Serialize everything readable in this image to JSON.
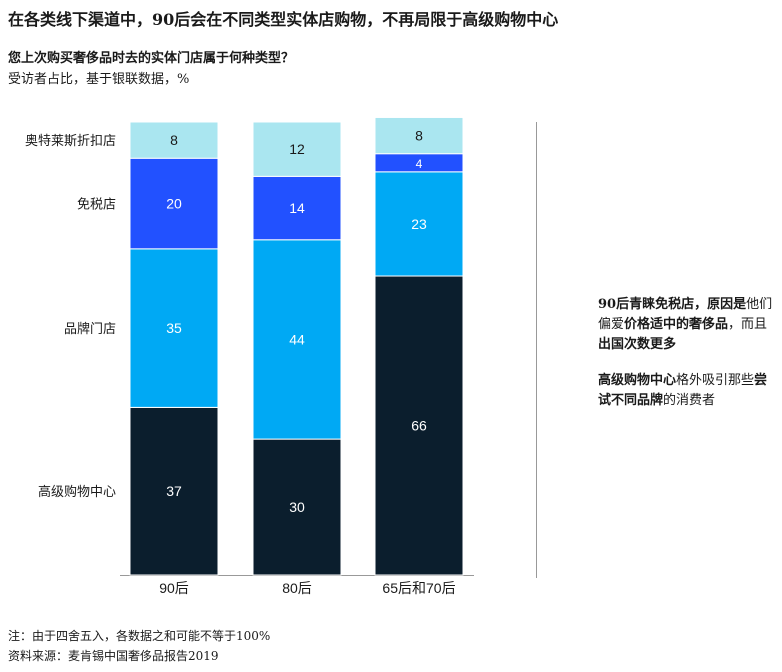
{
  "header": {
    "title": "在各类线下渠道中，90后会在不同类型实体店购物，不再局限于高级购物中心",
    "subtitle": "您上次购买奢侈品时去的实体门店属于何种类型？",
    "unit": "受访者占比，基于银联数据，%"
  },
  "chart_data": {
    "type": "bar",
    "stacked": true,
    "categories": [
      "90后",
      "80后",
      "65后和70后"
    ],
    "series": [
      {
        "name": "高级购物中心",
        "values": [
          37,
          30,
          66
        ],
        "color": "#0b1e2d",
        "label_color": "#ffffff"
      },
      {
        "name": "品牌门店",
        "values": [
          35,
          44,
          23
        ],
        "color": "#00a9f4",
        "label_color": "#ffffff"
      },
      {
        "name": "免税店",
        "values": [
          20,
          14,
          4
        ],
        "color": "#2251ff",
        "label_color": "#ffffff"
      },
      {
        "name": "奥特莱斯折扣店",
        "values": [
          8,
          12,
          8
        ],
        "color": "#aae6f0",
        "label_color": "#1a1a1a"
      }
    ],
    "ylim": [
      0,
      100
    ],
    "legend": "left"
  },
  "notes": [
    {
      "parts": [
        {
          "text": "90后青睐免税店，原因是",
          "bold": true
        },
        {
          "text": "他们偏爱",
          "bold": false
        },
        {
          "text": "价格适中的奢侈品",
          "bold": true
        },
        {
          "text": "，而且",
          "bold": false
        },
        {
          "text": "出国次数更多",
          "bold": true
        }
      ]
    },
    {
      "parts": [
        {
          "text": "高级购物中心",
          "bold": true
        },
        {
          "text": "格外吸引那些",
          "bold": false
        },
        {
          "text": "尝试不同品牌",
          "bold": true
        },
        {
          "text": "的消费者",
          "bold": false
        }
      ]
    }
  ],
  "footer": {
    "note": "注：由于四舍五入，各数据之和可能不等于100%",
    "source": "资料来源：麦肯锡中国奢侈品报告2019"
  }
}
